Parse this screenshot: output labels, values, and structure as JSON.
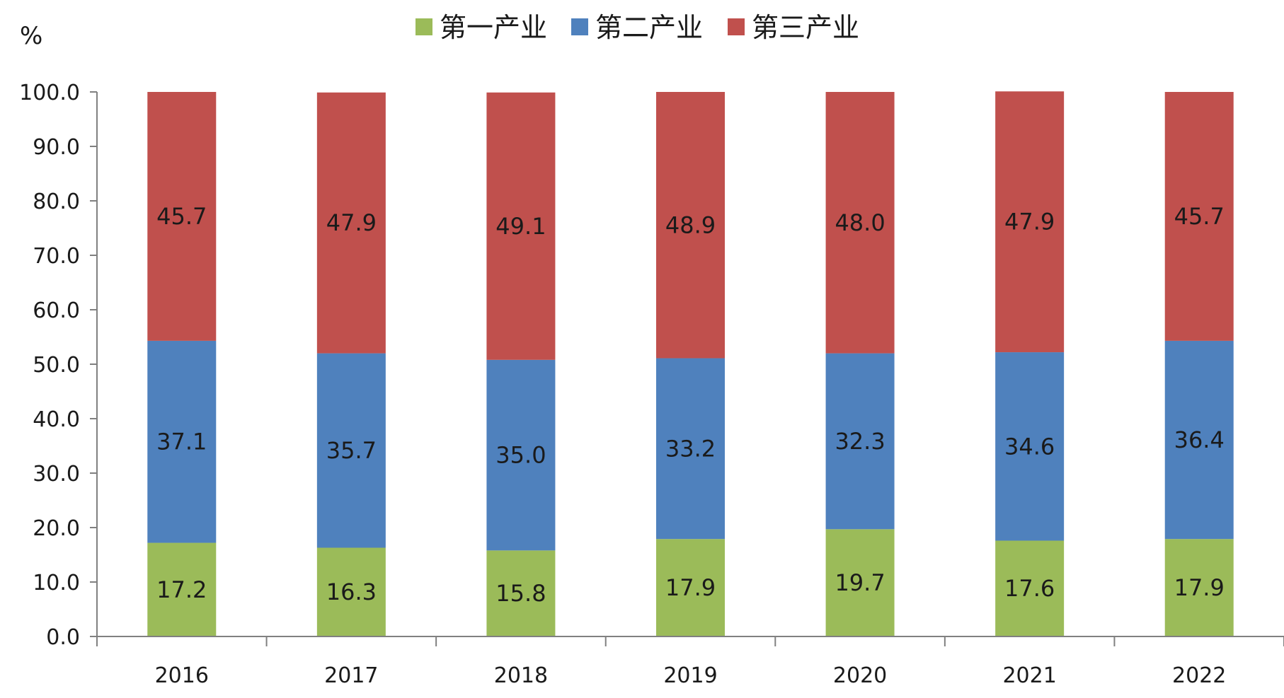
{
  "chart_data": {
    "type": "bar",
    "stacked": true,
    "title": "",
    "xlabel": "",
    "ylabel": "%",
    "ylim": [
      0,
      100
    ],
    "yticks": [
      "0.0",
      "10.0",
      "20.0",
      "30.0",
      "40.0",
      "50.0",
      "60.0",
      "70.0",
      "80.0",
      "90.0",
      "100.0"
    ],
    "categories": [
      "2016",
      "2017",
      "2018",
      "2019",
      "2020",
      "2021",
      "2022"
    ],
    "legend_position": "top-center",
    "grid": false,
    "series": [
      {
        "name": "第一产业",
        "color": "#9BBB59",
        "values": [
          17.2,
          16.3,
          15.8,
          17.9,
          19.7,
          17.6,
          17.9
        ],
        "labels": [
          "17.2",
          "16.3",
          "15.8",
          "17.9",
          "19.7",
          "17.6",
          "17.9"
        ]
      },
      {
        "name": "第二产业",
        "color": "#4F81BD",
        "values": [
          37.1,
          35.7,
          35.0,
          33.2,
          32.3,
          34.6,
          36.4
        ],
        "labels": [
          "37.1",
          "35.7",
          "35.0",
          "33.2",
          "32.3",
          "34.6",
          "36.4"
        ]
      },
      {
        "name": "第三产业",
        "color": "#C0504D",
        "values": [
          45.7,
          47.9,
          49.1,
          48.9,
          48.0,
          47.9,
          45.7
        ],
        "labels": [
          "45.7",
          "47.9",
          "49.1",
          "48.9",
          "48.0",
          "47.9",
          "45.7"
        ]
      }
    ]
  }
}
